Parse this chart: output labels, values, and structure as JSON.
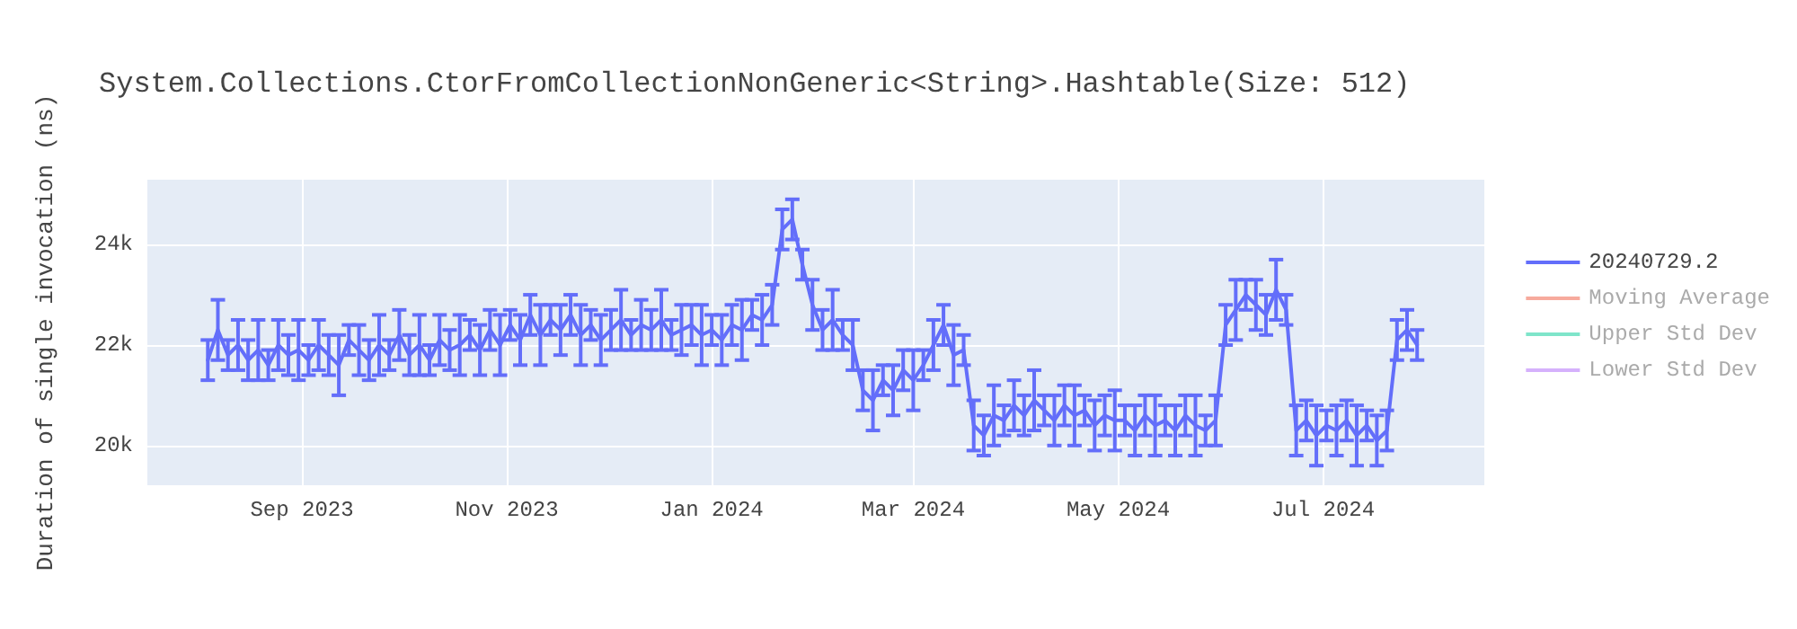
{
  "chart_data": {
    "type": "line",
    "title": "System.Collections.CtorFromCollectionNonGeneric<String>.Hashtable(Size: 512)",
    "ylabel": "Duration of single invocation (ns)",
    "x": [
      "2023-08-04",
      "2023-08-07",
      "2023-08-10",
      "2023-08-13",
      "2023-08-16",
      "2023-08-19",
      "2023-08-22",
      "2023-08-25",
      "2023-08-28",
      "2023-08-31",
      "2023-09-03",
      "2023-09-06",
      "2023-09-09",
      "2023-09-12",
      "2023-09-15",
      "2023-09-18",
      "2023-09-21",
      "2023-09-24",
      "2023-09-27",
      "2023-09-30",
      "2023-10-03",
      "2023-10-06",
      "2023-10-09",
      "2023-10-12",
      "2023-10-15",
      "2023-10-18",
      "2023-10-21",
      "2023-10-24",
      "2023-10-27",
      "2023-10-30",
      "2023-11-02",
      "2023-11-05",
      "2023-11-08",
      "2023-11-11",
      "2023-11-14",
      "2023-11-17",
      "2023-11-20",
      "2023-11-23",
      "2023-11-26",
      "2023-11-29",
      "2023-12-02",
      "2023-12-05",
      "2023-12-08",
      "2023-12-11",
      "2023-12-14",
      "2023-12-17",
      "2023-12-20",
      "2023-12-23",
      "2023-12-26",
      "2023-12-29",
      "2024-01-01",
      "2024-01-04",
      "2024-01-07",
      "2024-01-10",
      "2024-01-13",
      "2024-01-16",
      "2024-01-19",
      "2024-01-22",
      "2024-01-25",
      "2024-01-28",
      "2024-01-31",
      "2024-02-03",
      "2024-02-06",
      "2024-02-09",
      "2024-02-12",
      "2024-02-15",
      "2024-02-18",
      "2024-02-21",
      "2024-02-24",
      "2024-02-27",
      "2024-03-01",
      "2024-03-04",
      "2024-03-07",
      "2024-03-10",
      "2024-03-13",
      "2024-03-16",
      "2024-03-19",
      "2024-03-22",
      "2024-03-25",
      "2024-03-28",
      "2024-03-31",
      "2024-04-03",
      "2024-04-06",
      "2024-04-09",
      "2024-04-12",
      "2024-04-15",
      "2024-04-18",
      "2024-04-21",
      "2024-04-24",
      "2024-04-27",
      "2024-04-30",
      "2024-05-03",
      "2024-05-06",
      "2024-05-09",
      "2024-05-12",
      "2024-05-15",
      "2024-05-18",
      "2024-05-21",
      "2024-05-24",
      "2024-05-27",
      "2024-05-30",
      "2024-06-02",
      "2024-06-05",
      "2024-06-08",
      "2024-06-11",
      "2024-06-14",
      "2024-06-17",
      "2024-06-20",
      "2024-06-23",
      "2024-06-26",
      "2024-06-29",
      "2024-07-02",
      "2024-07-05",
      "2024-07-08",
      "2024-07-11",
      "2024-07-14",
      "2024-07-17",
      "2024-07-20",
      "2024-07-23",
      "2024-07-26",
      "2024-07-29"
    ],
    "series": [
      {
        "name": "20240729.2",
        "color": "#636efa",
        "values": [
          21700,
          22300,
          21800,
          22000,
          21700,
          21900,
          21600,
          22000,
          21800,
          21900,
          21700,
          22000,
          21800,
          21600,
          22100,
          21900,
          21700,
          22000,
          21800,
          22200,
          21800,
          22000,
          21700,
          22100,
          21900,
          22000,
          22200,
          21900,
          22300,
          22000,
          22400,
          22100,
          22600,
          22200,
          22500,
          22300,
          22600,
          22200,
          22400,
          22100,
          22300,
          22500,
          22200,
          22400,
          22300,
          22500,
          22200,
          22300,
          22400,
          22200,
          22300,
          22100,
          22400,
          22300,
          22600,
          22500,
          22800,
          24300,
          24500,
          23600,
          22800,
          22300,
          22500,
          22200,
          22000,
          21100,
          20900,
          21300,
          21100,
          21500,
          21300,
          21600,
          22000,
          22400,
          21800,
          21900,
          20400,
          20200,
          20600,
          20500,
          20800,
          20600,
          20900,
          20700,
          20500,
          20800,
          20600,
          20700,
          20400,
          20600,
          20500,
          20500,
          20300,
          20600,
          20400,
          20500,
          20300,
          20600,
          20400,
          20300,
          20500,
          22400,
          22700,
          23000,
          22800,
          22600,
          23100,
          22700,
          20300,
          20500,
          20200,
          20400,
          20300,
          20500,
          20200,
          20400,
          20100,
          20300,
          22100,
          22300,
          22000
        ],
        "errors": [
          400,
          600,
          300,
          500,
          400,
          600,
          300,
          500,
          400,
          600,
          300,
          500,
          400,
          600,
          300,
          500,
          400,
          600,
          300,
          500,
          400,
          600,
          300,
          500,
          400,
          600,
          300,
          500,
          400,
          600,
          300,
          500,
          400,
          600,
          300,
          500,
          400,
          600,
          300,
          500,
          400,
          600,
          300,
          500,
          400,
          600,
          300,
          500,
          400,
          600,
          300,
          500,
          400,
          600,
          300,
          500,
          400,
          400,
          400,
          300,
          500,
          400,
          600,
          300,
          500,
          400,
          600,
          300,
          500,
          400,
          600,
          300,
          500,
          400,
          600,
          300,
          500,
          400,
          600,
          300,
          500,
          400,
          600,
          300,
          500,
          400,
          600,
          300,
          500,
          400,
          600,
          300,
          500,
          400,
          600,
          300,
          500,
          400,
          600,
          300,
          500,
          400,
          600,
          300,
          500,
          400,
          600,
          300,
          500,
          400,
          600,
          300,
          500,
          400,
          600,
          300,
          500,
          400,
          400,
          400,
          300
        ]
      },
      {
        "name": "Moving Average",
        "color": "#ef553b",
        "values": [
          null,
          null,
          null,
          null,
          null,
          null,
          null,
          null,
          null,
          null,
          null,
          null,
          null,
          null,
          null,
          null,
          null,
          null,
          null,
          null,
          null,
          null,
          null,
          null,
          null,
          null,
          null,
          null,
          null,
          null,
          null,
          null,
          null,
          null,
          null,
          null,
          null,
          null,
          null,
          null,
          null,
          null,
          null,
          null,
          null,
          null,
          null,
          null,
          null,
          null,
          null,
          null,
          null,
          null,
          null,
          null,
          null,
          null,
          null,
          null,
          null,
          null,
          null,
          null,
          null,
          null,
          null,
          null,
          null,
          null,
          null,
          null,
          null,
          null,
          null,
          null,
          null,
          null,
          null,
          null,
          null,
          null,
          null,
          null,
          null,
          null,
          null,
          null,
          null,
          null,
          null,
          null,
          null,
          null,
          null,
          null,
          null,
          null,
          null,
          null,
          null,
          null,
          null,
          null,
          null,
          null,
          null,
          null,
          null,
          null,
          null,
          null,
          null,
          null,
          null,
          null,
          null,
          null,
          null,
          null,
          null
        ]
      },
      {
        "name": "Upper Std Dev",
        "color": "#00cc96",
        "values": [
          null,
          null,
          null,
          null,
          null,
          null,
          null,
          null,
          null,
          null,
          null,
          null,
          null,
          null,
          null,
          null,
          null,
          null,
          null,
          null,
          null,
          null,
          null,
          null,
          null,
          null,
          null,
          null,
          null,
          null,
          null,
          null,
          null,
          null,
          null,
          null,
          null,
          null,
          null,
          null,
          null,
          null,
          null,
          null,
          null,
          null,
          null,
          null,
          null,
          null,
          null,
          null,
          null,
          null,
          null,
          null,
          null,
          null,
          null,
          null,
          null,
          null,
          null,
          null,
          null,
          null,
          null,
          null,
          null,
          null,
          null,
          null,
          null,
          null,
          null,
          null,
          null,
          null,
          null,
          null,
          null,
          null,
          null,
          null,
          null,
          null,
          null,
          null,
          null,
          null,
          null,
          null,
          null,
          null,
          null,
          null,
          null,
          null,
          null,
          null,
          null,
          null,
          null,
          null,
          null,
          null,
          null,
          null,
          null,
          null,
          null,
          null,
          null,
          null,
          null,
          null,
          null,
          null,
          null,
          null,
          null
        ]
      },
      {
        "name": "Lower Std Dev",
        "color": "#ab63fa",
        "values": [
          null,
          null,
          null,
          null,
          null,
          null,
          null,
          null,
          null,
          null,
          null,
          null,
          null,
          null,
          null,
          null,
          null,
          null,
          null,
          null,
          null,
          null,
          null,
          null,
          null,
          null,
          null,
          null,
          null,
          null,
          null,
          null,
          null,
          null,
          null,
          null,
          null,
          null,
          null,
          null,
          null,
          null,
          null,
          null,
          null,
          null,
          null,
          null,
          null,
          null,
          null,
          null,
          null,
          null,
          null,
          null,
          null,
          null,
          null,
          null,
          null,
          null,
          null,
          null,
          null,
          null,
          null,
          null,
          null,
          null,
          null,
          null,
          null,
          null,
          null,
          null,
          null,
          null,
          null,
          null,
          null,
          null,
          null,
          null,
          null,
          null,
          null,
          null,
          null,
          null,
          null,
          null,
          null,
          null,
          null,
          null,
          null,
          null,
          null,
          null,
          null,
          null,
          null,
          null,
          null,
          null,
          null,
          null,
          null,
          null,
          null,
          null,
          null,
          null,
          null,
          null,
          null,
          null,
          null,
          null,
          null
        ]
      }
    ],
    "xlim": [
      "2023-07-17",
      "2024-08-18"
    ],
    "xticks": [
      {
        "value": "2023-09-01",
        "label": "Sep 2023"
      },
      {
        "value": "2023-11-01",
        "label": "Nov 2023"
      },
      {
        "value": "2024-01-01",
        "label": "Jan 2024"
      },
      {
        "value": "2024-03-01",
        "label": "Mar 2024"
      },
      {
        "value": "2024-05-01",
        "label": "May 2024"
      },
      {
        "value": "2024-07-01",
        "label": "Jul 2024"
      }
    ],
    "ylim": [
      19210,
      25290
    ],
    "yticks": [
      {
        "value": 20000,
        "label": "20k"
      },
      {
        "value": 22000,
        "label": "22k"
      },
      {
        "value": 24000,
        "label": "24k"
      }
    ],
    "grid": true,
    "legend": "top right",
    "marker": "none",
    "line_style": "solid"
  }
}
